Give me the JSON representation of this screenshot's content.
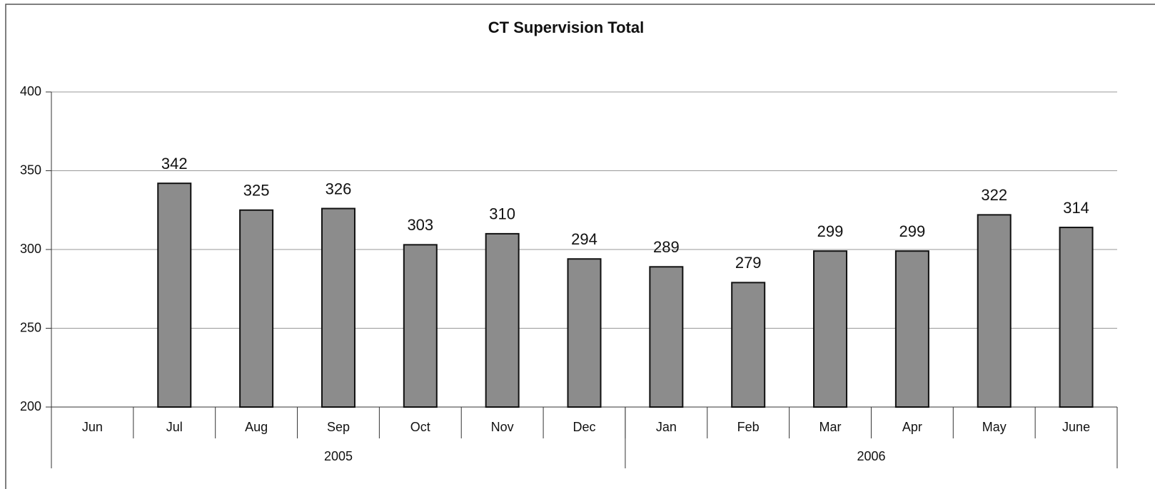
{
  "chart_data": {
    "type": "bar",
    "title": "CT Supervision Total",
    "categories": [
      "Jun",
      "Jul",
      "Aug",
      "Sep",
      "Oct",
      "Nov",
      "Dec",
      "Jan",
      "Feb",
      "Mar",
      "Apr",
      "May",
      "June"
    ],
    "values": [
      null,
      342,
      325,
      326,
      303,
      310,
      294,
      289,
      279,
      299,
      299,
      322,
      314
    ],
    "groups": [
      {
        "label": "2005",
        "span": 7
      },
      {
        "label": "2006",
        "span": 6
      }
    ],
    "color": "#8c8c8c",
    "ylim": [
      200,
      400
    ],
    "yticks": [
      200,
      250,
      300,
      350,
      400
    ],
    "grid": true
  }
}
